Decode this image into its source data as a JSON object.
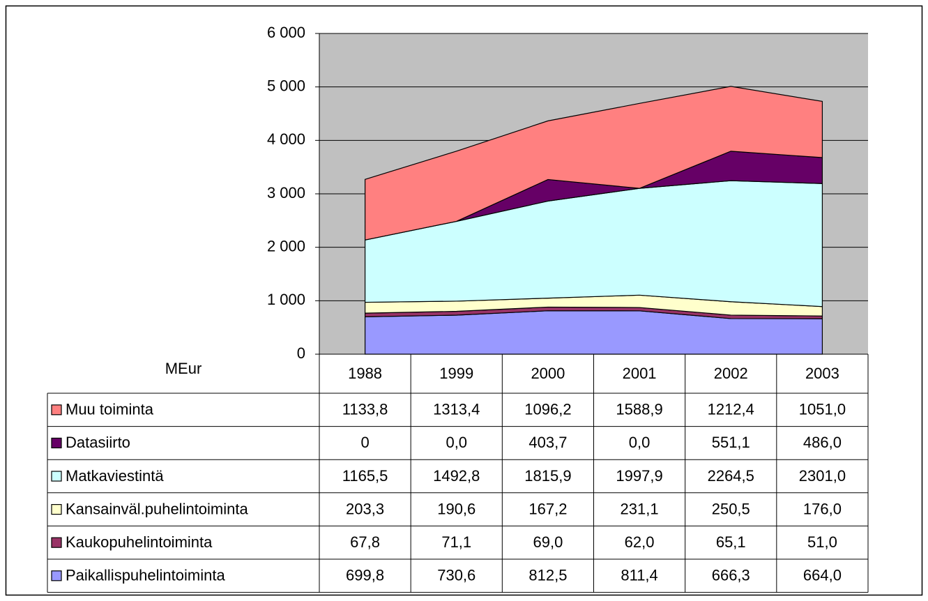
{
  "chart_data": {
    "type": "stacked_area",
    "y_label": "MEur",
    "categories": [
      "1988",
      "1999",
      "2000",
      "2001",
      "2002",
      "2003"
    ],
    "ylim": [
      0,
      6000
    ],
    "yticks": [
      0,
      {
        "value": 1000,
        "label": "1 000"
      },
      {
        "value": 2000,
        "label": "2 000"
      },
      {
        "value": 3000,
        "label": "3 000"
      },
      {
        "value": 4000,
        "label": "4 000"
      },
      {
        "value": 5000,
        "label": "5 000"
      },
      {
        "value": 6000,
        "label": "6 000"
      }
    ],
    "grid": true,
    "plot_background": "#c0c0c0",
    "series": [
      {
        "name": "Muu toiminta",
        "color": "#ff8080",
        "values": [
          1133.8,
          1313.4,
          1096.2,
          1588.9,
          1212.4,
          1051.0
        ],
        "value_labels": [
          "1133,8",
          "1313,4",
          "1096,2",
          "1588,9",
          "1212,4",
          "1051,0"
        ]
      },
      {
        "name": "Datasiirto",
        "color": "#660066",
        "values": [
          0,
          0.0,
          403.7,
          0.0,
          551.1,
          486.0
        ],
        "value_labels": [
          "0",
          "0,0",
          "403,7",
          "0,0",
          "551,1",
          "486,0"
        ]
      },
      {
        "name": "Matkaviestintä",
        "color": "#ccffff",
        "values": [
          1165.5,
          1492.8,
          1815.9,
          1997.9,
          2264.5,
          2301.0
        ],
        "value_labels": [
          "1165,5",
          "1492,8",
          "1815,9",
          "1997,9",
          "2264,5",
          "2301,0"
        ]
      },
      {
        "name": "Kansainväl.puhelintoiminta",
        "color": "#ffffcc",
        "values": [
          203.3,
          190.6,
          167.2,
          231.1,
          250.5,
          176.0
        ],
        "value_labels": [
          "203,3",
          "190,6",
          "167,2",
          "231,1",
          "250,5",
          "176,0"
        ]
      },
      {
        "name": "Kaukopuhelintoiminta",
        "color": "#993366",
        "values": [
          67.8,
          71.1,
          69.0,
          62.0,
          65.1,
          51.0
        ],
        "value_labels": [
          "67,8",
          "71,1",
          "69,0",
          "62,0",
          "65,1",
          "51,0"
        ]
      },
      {
        "name": "Paikallispuhelintoiminta",
        "color": "#9999ff",
        "values": [
          699.8,
          730.6,
          812.5,
          811.4,
          666.3,
          664.0
        ],
        "value_labels": [
          "699,8",
          "730,6",
          "812,5",
          "811,4",
          "666,3",
          "664,0"
        ]
      }
    ]
  }
}
